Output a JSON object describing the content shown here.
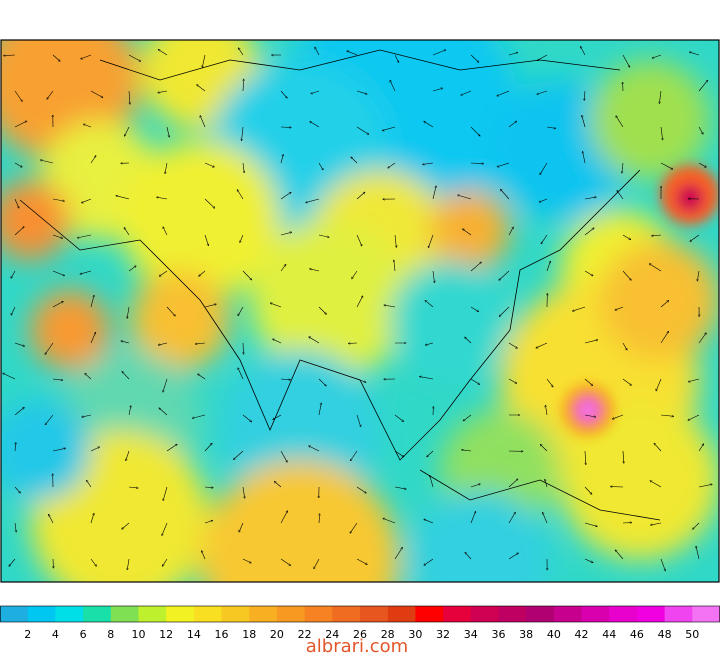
{
  "colorbar": {
    "ticks": [
      2,
      4,
      6,
      8,
      10,
      12,
      14,
      16,
      18,
      20,
      22,
      24,
      26,
      28,
      30,
      32,
      34,
      36,
      38,
      40,
      42,
      44,
      46,
      48,
      50
    ],
    "colors": [
      "#1eaee0",
      "#00c6f2",
      "#00dfe8",
      "#18e0a8",
      "#7ee052",
      "#bff02e",
      "#f2f222",
      "#f8df22",
      "#f8c822",
      "#f8b022",
      "#f89a22",
      "#f78222",
      "#f06c20",
      "#e85620",
      "#e03c12",
      "#ff0000",
      "#e6003c",
      "#d00052",
      "#bf0062",
      "#b00072",
      "#c8008e",
      "#d800ae",
      "#e800cc",
      "#f000e0",
      "#f044f0",
      "#f472f4"
    ]
  },
  "watermark": "albrari.com"
}
